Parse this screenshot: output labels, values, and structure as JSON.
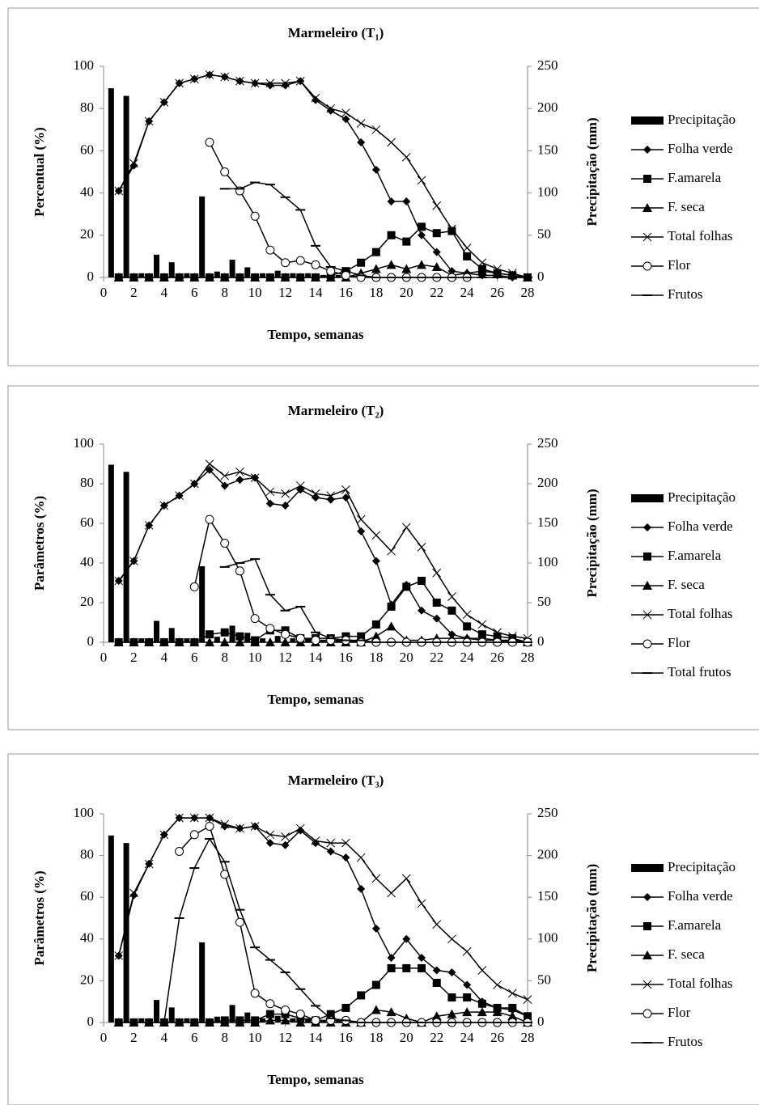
{
  "chart_data": [
    {
      "type": "combo",
      "title": "Marmeleiro (T₁)",
      "xlabel": "Tempo, semanas",
      "ylabel": "Percentual (%)",
      "y2label": "Precipitação (mm)",
      "xlim": [
        0,
        28
      ],
      "xticks": [
        0,
        2,
        4,
        6,
        8,
        10,
        12,
        14,
        16,
        18,
        20,
        22,
        24,
        26,
        28
      ],
      "ylim": [
        0,
        100
      ],
      "yticks": [
        0,
        20,
        40,
        60,
        80,
        100
      ],
      "y2lim": [
        0,
        250
      ],
      "y2ticks": [
        0,
        50,
        100,
        150,
        200,
        250
      ],
      "legend": "right",
      "grid": false,
      "x": [
        1,
        2,
        3,
        4,
        5,
        6,
        7,
        8,
        9,
        10,
        11,
        12,
        13,
        14,
        15,
        16,
        17,
        18,
        19,
        20,
        21,
        22,
        23,
        24,
        25,
        26,
        27,
        28
      ],
      "series": [
        {
          "name": "Precipitação",
          "kind": "bar",
          "axis": "y2",
          "color": "#000000",
          "x": [
            0.5,
            1.5,
            2.5,
            3.5,
            4.5,
            5.5,
            6.5,
            7.5,
            8.5,
            9.5,
            10.5,
            11.5,
            12.5,
            13.5,
            14.5,
            15.5,
            16.5
          ],
          "values": [
            224,
            215,
            5,
            27,
            18,
            5,
            96,
            7,
            21,
            12,
            5,
            8,
            5,
            5,
            3,
            3,
            2
          ]
        },
        {
          "name": "Folha verde",
          "marker": "diamond",
          "color": "#000000",
          "values": [
            41,
            53,
            74,
            83,
            92,
            94,
            96,
            95,
            93,
            92,
            91,
            91,
            93,
            84,
            79,
            75,
            64,
            51,
            36,
            36,
            20,
            12,
            3,
            2,
            1,
            1,
            0,
            0
          ]
        },
        {
          "name": "F.amarela",
          "marker": "square",
          "color": "#000000",
          "values": [
            0,
            0,
            0,
            0,
            0,
            0,
            0,
            0,
            0,
            0,
            0,
            0,
            0,
            0,
            1,
            3,
            7,
            12,
            20,
            17,
            24,
            21,
            22,
            10,
            4,
            2,
            1,
            0
          ]
        },
        {
          "name": "F. seca",
          "marker": "triangle",
          "color": "#000000",
          "values": [
            0,
            0,
            0,
            0,
            0,
            0,
            0,
            0,
            0,
            0,
            0,
            0,
            0,
            0,
            0,
            0,
            2,
            4,
            6,
            4,
            6,
            5,
            1,
            2,
            3,
            2,
            1,
            0
          ]
        },
        {
          "name": "Total folhas",
          "marker": "x",
          "color": "#000000",
          "values": [
            41,
            54,
            74,
            83,
            92,
            94,
            96,
            95,
            93,
            92,
            92,
            92,
            93,
            85,
            80,
            78,
            73,
            70,
            64,
            57,
            46,
            34,
            23,
            14,
            7,
            4,
            2,
            0
          ]
        },
        {
          "name": "Flor",
          "marker": "circle",
          "color": "#000000",
          "values": [
            null,
            null,
            null,
            null,
            null,
            null,
            64,
            50,
            41,
            29,
            13,
            7,
            8,
            6,
            3,
            1,
            0,
            0,
            0,
            0,
            0,
            0,
            0,
            0,
            null,
            null,
            null,
            null
          ]
        },
        {
          "name": "Frutos",
          "marker": "dash",
          "color": "#000000",
          "values": [
            null,
            null,
            null,
            null,
            null,
            null,
            null,
            42,
            42,
            45,
            44,
            38,
            32,
            15,
            5,
            3,
            1,
            0,
            0,
            0,
            0,
            0,
            0,
            0,
            0,
            0,
            0,
            0
          ]
        }
      ]
    },
    {
      "type": "combo",
      "title": "Marmeleiro (T₂)",
      "xlabel": "Tempo, semanas",
      "ylabel": "Parâmetros (%)",
      "y2label": "Precipitação (mm)",
      "xlim": [
        0,
        28
      ],
      "xticks": [
        0,
        2,
        4,
        6,
        8,
        10,
        12,
        14,
        16,
        18,
        20,
        22,
        24,
        26,
        28
      ],
      "ylim": [
        0,
        100
      ],
      "yticks": [
        0,
        20,
        40,
        60,
        80,
        100
      ],
      "y2lim": [
        0,
        250
      ],
      "y2ticks": [
        0,
        50,
        100,
        150,
        200,
        250
      ],
      "legend": "right",
      "grid": false,
      "x": [
        1,
        2,
        3,
        4,
        5,
        6,
        7,
        8,
        9,
        10,
        11,
        12,
        13,
        14,
        15,
        16,
        17,
        18,
        19,
        20,
        21,
        22,
        23,
        24,
        25,
        26,
        27,
        28
      ],
      "series": [
        {
          "name": "Precipitação",
          "kind": "bar",
          "axis": "y2",
          "color": "#000000",
          "x": [
            0.5,
            1.5,
            2.5,
            3.5,
            4.5,
            5.5,
            6.5,
            7.5,
            8.5,
            9.5,
            10.5,
            11.5,
            12.5,
            13.5,
            14.5,
            15.5,
            16.5
          ],
          "values": [
            224,
            215,
            5,
            27,
            18,
            5,
            96,
            7,
            21,
            12,
            5,
            8,
            5,
            5,
            3,
            3,
            2
          ]
        },
        {
          "name": "Folha verde",
          "marker": "diamond",
          "color": "#000000",
          "values": [
            31,
            41,
            59,
            69,
            74,
            80,
            87,
            79,
            82,
            83,
            70,
            69,
            77,
            73,
            72,
            73,
            56,
            41,
            19,
            29,
            16,
            12,
            4,
            2,
            1,
            1,
            0,
            0
          ]
        },
        {
          "name": "F.amarela",
          "marker": "square",
          "color": "#000000",
          "values": [
            0,
            0,
            0,
            0,
            0,
            0,
            4,
            5,
            3,
            1,
            6,
            6,
            2,
            2,
            2,
            3,
            3,
            9,
            18,
            28,
            31,
            20,
            16,
            8,
            4,
            3,
            2,
            0
          ]
        },
        {
          "name": "F. seca",
          "marker": "triangle",
          "color": "#000000",
          "values": [
            0,
            0,
            0,
            0,
            0,
            0,
            0,
            0,
            0,
            0,
            0,
            0,
            0,
            0,
            0,
            0,
            0,
            3,
            8,
            1,
            1,
            2,
            2,
            2,
            2,
            1,
            1,
            0
          ]
        },
        {
          "name": "Total folhas",
          "marker": "x",
          "color": "#000000",
          "values": [
            31,
            41,
            59,
            69,
            74,
            80,
            90,
            84,
            86,
            83,
            76,
            75,
            79,
            75,
            74,
            77,
            62,
            54,
            46,
            58,
            48,
            35,
            23,
            14,
            9,
            5,
            3,
            2
          ]
        },
        {
          "name": "Flor",
          "marker": "circle",
          "color": "#000000",
          "values": [
            null,
            null,
            null,
            null,
            null,
            28,
            62,
            50,
            36,
            12,
            7,
            4,
            2,
            1,
            1,
            1,
            0,
            0,
            0,
            0,
            0,
            0,
            0,
            0,
            0,
            0,
            0,
            0
          ]
        },
        {
          "name": "Total frutos",
          "marker": "dash",
          "color": "#000000",
          "values": [
            null,
            null,
            null,
            null,
            null,
            null,
            null,
            38,
            40,
            42,
            24,
            16,
            18,
            5,
            2,
            1,
            1,
            0,
            0,
            0,
            0,
            0,
            0,
            0,
            0,
            0,
            0,
            0
          ]
        }
      ]
    },
    {
      "type": "combo",
      "title": "Marmeleiro (T₃)",
      "xlabel": "Tempo, semanas",
      "ylabel": "Parâmetros (%)",
      "y2label": "Precipitação (mm)",
      "xlim": [
        0,
        28
      ],
      "xticks": [
        0,
        2,
        4,
        6,
        8,
        10,
        12,
        14,
        16,
        18,
        20,
        22,
        24,
        26,
        28
      ],
      "ylim": [
        0,
        100
      ],
      "yticks": [
        0,
        20,
        40,
        60,
        80,
        100
      ],
      "y2lim": [
        0,
        250
      ],
      "y2ticks": [
        0,
        50,
        100,
        150,
        200,
        250
      ],
      "legend": "right",
      "grid": false,
      "x": [
        1,
        2,
        3,
        4,
        5,
        6,
        7,
        8,
        9,
        10,
        11,
        12,
        13,
        14,
        15,
        16,
        17,
        18,
        19,
        20,
        21,
        22,
        23,
        24,
        25,
        26,
        27,
        28
      ],
      "series": [
        {
          "name": "Precipitação",
          "kind": "bar",
          "axis": "y2",
          "color": "#000000",
          "x": [
            0.5,
            1.5,
            2.5,
            3.5,
            4.5,
            5.5,
            6.5,
            7.5,
            8.5,
            9.5,
            10.5,
            11.5,
            12.5,
            13.5,
            14.5,
            15.5,
            16.5
          ],
          "values": [
            224,
            215,
            5,
            27,
            18,
            5,
            96,
            7,
            21,
            12,
            5,
            8,
            5,
            5,
            3,
            3,
            2
          ]
        },
        {
          "name": "Folha verde",
          "marker": "diamond",
          "color": "#000000",
          "values": [
            32,
            61,
            76,
            90,
            98,
            98,
            98,
            94,
            93,
            94,
            86,
            85,
            92,
            86,
            82,
            79,
            64,
            45,
            31,
            40,
            31,
            25,
            24,
            18,
            10,
            7,
            6,
            3
          ]
        },
        {
          "name": "F.amarela",
          "marker": "square",
          "color": "#000000",
          "values": [
            0,
            0,
            0,
            0,
            0,
            0,
            0,
            1,
            1,
            1,
            4,
            4,
            2,
            1,
            4,
            7,
            13,
            18,
            26,
            26,
            26,
            19,
            12,
            12,
            9,
            7,
            7,
            3
          ]
        },
        {
          "name": "F. seca",
          "marker": "triangle",
          "color": "#000000",
          "values": [
            0,
            0,
            0,
            0,
            0,
            0,
            0,
            0,
            0,
            0,
            1,
            1,
            0,
            0,
            0,
            0,
            0,
            6,
            5,
            2,
            0,
            3,
            4,
            5,
            5,
            5,
            3,
            0
          ]
        },
        {
          "name": "Total folhas",
          "marker": "x",
          "color": "#000000",
          "values": [
            32,
            62,
            76,
            90,
            98,
            98,
            98,
            95,
            93,
            94,
            90,
            89,
            93,
            87,
            86,
            86,
            79,
            69,
            62,
            69,
            57,
            47,
            40,
            34,
            25,
            18,
            14,
            11
          ]
        },
        {
          "name": "Flor",
          "marker": "circle",
          "color": "#000000",
          "values": [
            null,
            null,
            null,
            null,
            82,
            90,
            94,
            71,
            48,
            14,
            9,
            6,
            4,
            1,
            1,
            1,
            0,
            0,
            0,
            0,
            0,
            0,
            0,
            0,
            0,
            0,
            0,
            0
          ]
        },
        {
          "name": "Frutos",
          "marker": "dash",
          "color": "#000000",
          "values": [
            null,
            null,
            null,
            0,
            50,
            74,
            88,
            77,
            54,
            36,
            30,
            24,
            16,
            8,
            2,
            1,
            0,
            0,
            0,
            0,
            0,
            0,
            0,
            0,
            0,
            0,
            0,
            0
          ]
        }
      ]
    }
  ]
}
